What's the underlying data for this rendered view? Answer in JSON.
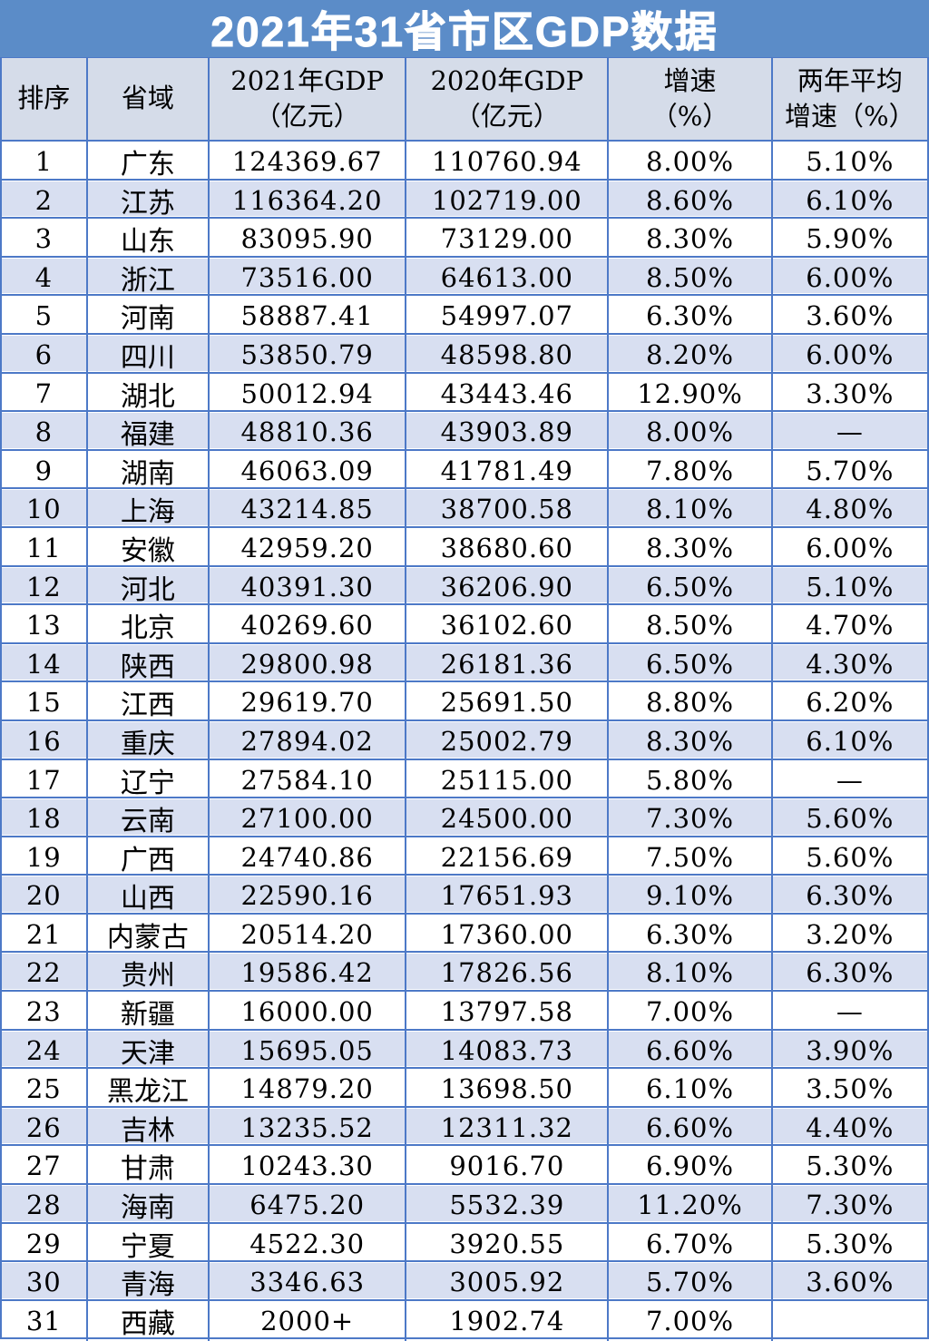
{
  "chart_data": {
    "type": "table",
    "title": "2021年31省市区GDP数据",
    "columns": [
      "排序",
      "省域",
      "2021年GDP\n（亿元）",
      "2020年GDP\n（亿元）",
      "增速\n（%）",
      "两年平均\n增速（%）"
    ],
    "rows": [
      [
        "1",
        "广东",
        "124369.67",
        "110760.94",
        "8.00%",
        "5.10%"
      ],
      [
        "2",
        "江苏",
        "116364.20",
        "102719.00",
        "8.60%",
        "6.10%"
      ],
      [
        "3",
        "山东",
        "83095.90",
        "73129.00",
        "8.30%",
        "5.90%"
      ],
      [
        "4",
        "浙江",
        "73516.00",
        "64613.00",
        "8.50%",
        "6.00%"
      ],
      [
        "5",
        "河南",
        "58887.41",
        "54997.07",
        "6.30%",
        "3.60%"
      ],
      [
        "6",
        "四川",
        "53850.79",
        "48598.80",
        "8.20%",
        "6.00%"
      ],
      [
        "7",
        "湖北",
        "50012.94",
        "43443.46",
        "12.90%",
        "3.30%"
      ],
      [
        "8",
        "福建",
        "48810.36",
        "43903.89",
        "8.00%",
        "—"
      ],
      [
        "9",
        "湖南",
        "46063.09",
        "41781.49",
        "7.80%",
        "5.70%"
      ],
      [
        "10",
        "上海",
        "43214.85",
        "38700.58",
        "8.10%",
        "4.80%"
      ],
      [
        "11",
        "安徽",
        "42959.20",
        "38680.60",
        "8.30%",
        "6.00%"
      ],
      [
        "12",
        "河北",
        "40391.30",
        "36206.90",
        "6.50%",
        "5.10%"
      ],
      [
        "13",
        "北京",
        "40269.60",
        "36102.60",
        "8.50%",
        "4.70%"
      ],
      [
        "14",
        "陕西",
        "29800.98",
        "26181.36",
        "6.50%",
        "4.30%"
      ],
      [
        "15",
        "江西",
        "29619.70",
        "25691.50",
        "8.80%",
        "6.20%"
      ],
      [
        "16",
        "重庆",
        "27894.02",
        "25002.79",
        "8.30%",
        "6.10%"
      ],
      [
        "17",
        "辽宁",
        "27584.10",
        "25115.00",
        "5.80%",
        "—"
      ],
      [
        "18",
        "云南",
        "27100.00",
        "24500.00",
        "7.30%",
        "5.60%"
      ],
      [
        "19",
        "广西",
        "24740.86",
        "22156.69",
        "7.50%",
        "5.60%"
      ],
      [
        "20",
        "山西",
        "22590.16",
        "17651.93",
        "9.10%",
        "6.30%"
      ],
      [
        "21",
        "内蒙古",
        "20514.20",
        "17360.00",
        "6.30%",
        "3.20%"
      ],
      [
        "22",
        "贵州",
        "19586.42",
        "17826.56",
        "8.10%",
        "6.30%"
      ],
      [
        "23",
        "新疆",
        "16000.00",
        "13797.58",
        "7.00%",
        "—"
      ],
      [
        "24",
        "天津",
        "15695.05",
        "14083.73",
        "6.60%",
        "3.90%"
      ],
      [
        "25",
        "黑龙江",
        "14879.20",
        "13698.50",
        "6.10%",
        "3.50%"
      ],
      [
        "26",
        "吉林",
        "13235.52",
        "12311.32",
        "6.60%",
        "4.40%"
      ],
      [
        "27",
        "甘肃",
        "10243.30",
        "9016.70",
        "6.90%",
        "5.30%"
      ],
      [
        "28",
        "海南",
        "6475.20",
        "5532.39",
        "11.20%",
        "7.30%"
      ],
      [
        "29",
        "宁夏",
        "4522.30",
        "3920.55",
        "6.70%",
        "5.30%"
      ],
      [
        "30",
        "青海",
        "3346.63",
        "3005.92",
        "5.70%",
        "3.60%"
      ],
      [
        "31",
        "西藏",
        "2000+",
        "1902.74",
        "7.00%",
        ""
      ]
    ]
  },
  "colors": {
    "title_bar": "#5b8cc8",
    "header_bg": "#d5dce9",
    "stripe_bg": "#d8dff1",
    "border": "#4d79c7",
    "title_text": "#ffffff",
    "cell_text": "#000000"
  }
}
